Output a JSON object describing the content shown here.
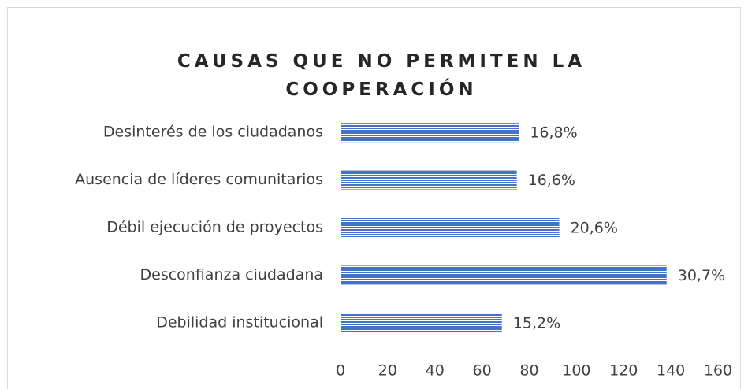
{
  "chart_data": {
    "type": "barh",
    "title": "CAUSAS QUE NO PERMITEN LA COOPERACIÓN",
    "categories": [
      "Desinterés de los ciudadanos",
      "Ausencia de líderes comunitarios",
      "Débil ejecución de proyectos",
      "Desconfianza ciudadana",
      "Debilidad institucional"
    ],
    "values": [
      75.6,
      74.7,
      92.7,
      138.2,
      68.4
    ],
    "value_labels": [
      "16,8%",
      "16,6%",
      "20,6%",
      "30,7%",
      "15,2%"
    ],
    "color": "#4472c4",
    "xlim": [
      0,
      160
    ],
    "xticks": [
      0,
      20,
      40,
      60,
      80,
      100,
      120,
      140,
      160
    ],
    "grid": false
  }
}
